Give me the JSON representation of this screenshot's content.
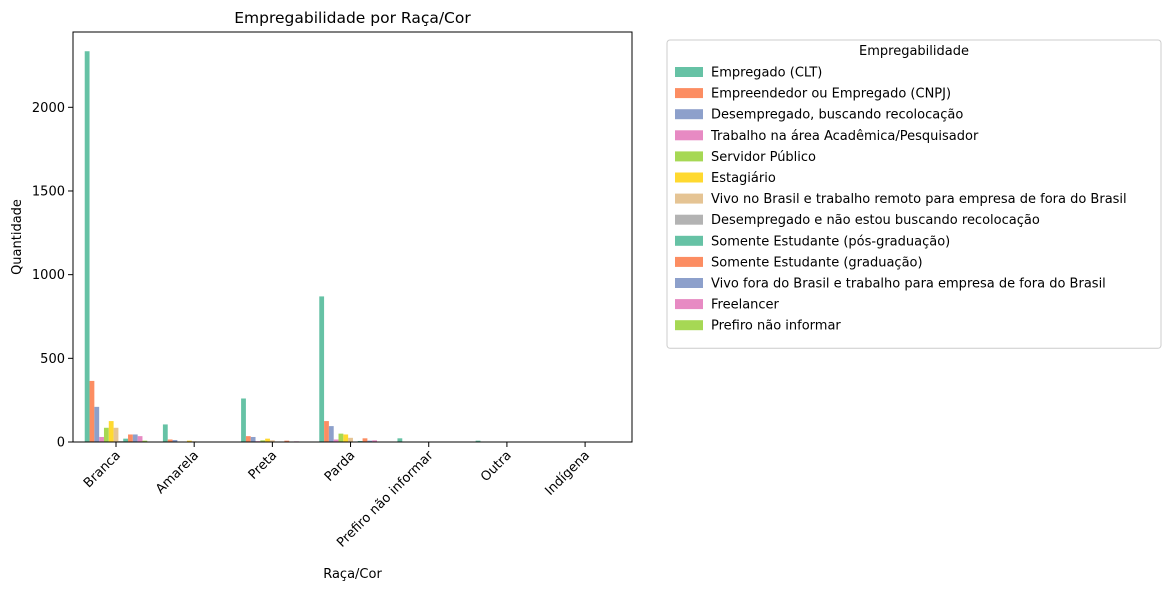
{
  "chart_data": {
    "type": "bar",
    "title": "Empregabilidade por Raça/Cor",
    "xlabel": "Raça/Cor",
    "ylabel": "Quantidade",
    "ylim": [
      0,
      2450
    ],
    "yticks": [
      0,
      500,
      1000,
      1500,
      2000
    ],
    "grid": false,
    "legend": {
      "title": "Empregabilidade",
      "placement": "outside-right-top"
    },
    "categories": [
      "Branca",
      "Amarela",
      "Preta",
      "Parda",
      "Prefiro não informar",
      "Outra",
      "Indígena"
    ],
    "series": [
      {
        "name": "Empregado (CLT)",
        "color": "#66c2a5",
        "values": [
          2335,
          105,
          260,
          870,
          22,
          8,
          3
        ]
      },
      {
        "name": "Empreendedor ou Empregado (CNPJ)",
        "color": "#fc8d62",
        "values": [
          365,
          15,
          35,
          125,
          3,
          1,
          0
        ]
      },
      {
        "name": "Desempregado, buscando recolocação",
        "color": "#8da0cb",
        "values": [
          210,
          12,
          30,
          95,
          2,
          1,
          0
        ]
      },
      {
        "name": "Trabalho na área Acadêmica/Pesquisador",
        "color": "#e78ac3",
        "values": [
          30,
          3,
          5,
          15,
          0,
          0,
          0
        ]
      },
      {
        "name": "Servidor Público",
        "color": "#a6d854",
        "values": [
          85,
          3,
          10,
          50,
          1,
          0,
          0
        ]
      },
      {
        "name": "Estagiário",
        "color": "#ffd92f",
        "values": [
          125,
          8,
          20,
          45,
          1,
          0,
          0
        ]
      },
      {
        "name": "Vivo no Brasil e trabalho remoto para empresa de fora do Brasil",
        "color": "#e5c494",
        "values": [
          85,
          4,
          10,
          25,
          1,
          0,
          0
        ]
      },
      {
        "name": "Desempregado e não estou buscando recolocação",
        "color": "#b3b3b3",
        "values": [
          5,
          1,
          1,
          3,
          0,
          0,
          0
        ]
      },
      {
        "name": "Somente Estudante (pós-graduação)",
        "color": "#66c2a5",
        "values": [
          20,
          2,
          3,
          6,
          0,
          0,
          0
        ]
      },
      {
        "name": "Somente Estudante (graduação)",
        "color": "#fc8d62",
        "values": [
          45,
          3,
          8,
          22,
          0,
          0,
          0
        ]
      },
      {
        "name": "Vivo fora do Brasil e trabalho para empresa de fora do Brasil",
        "color": "#8da0cb",
        "values": [
          45,
          2,
          3,
          8,
          0,
          0,
          0
        ]
      },
      {
        "name": "Freelancer",
        "color": "#e78ac3",
        "values": [
          35,
          2,
          4,
          10,
          0,
          0,
          0
        ]
      },
      {
        "name": "Prefiro não informar",
        "color": "#a6d854",
        "values": [
          8,
          1,
          1,
          3,
          1,
          0,
          0
        ]
      }
    ]
  }
}
